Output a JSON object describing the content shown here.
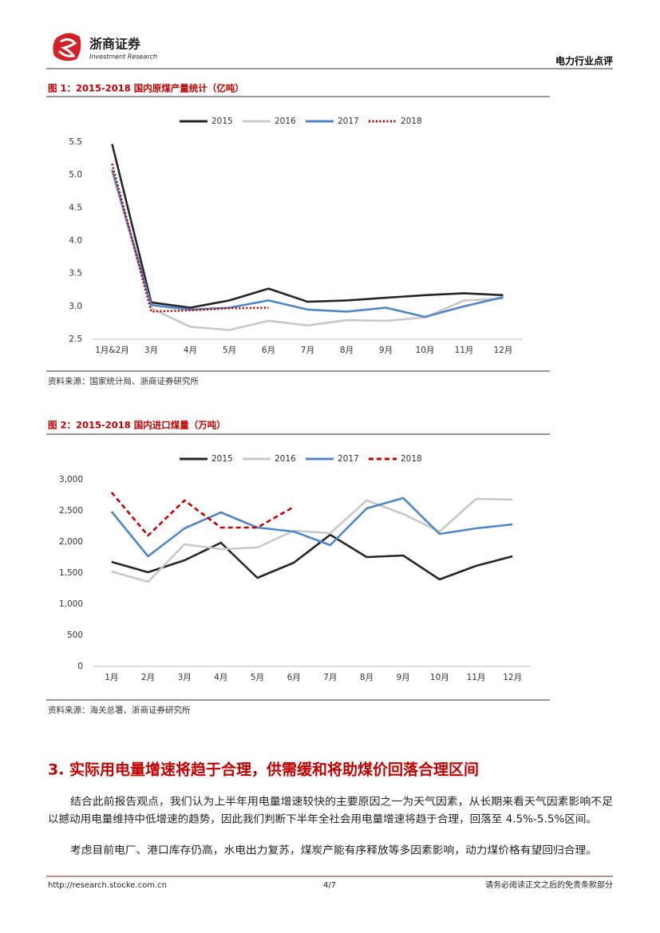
{
  "header": {
    "company": "浙商证券",
    "company_en": "Investment Research",
    "report_type": "电力行业点评"
  },
  "chart_data": [
    {
      "type": "line",
      "title": "图 1：2015-2018 国内原煤产量统计（亿吨）",
      "categories": [
        "1月&2月",
        "3月",
        "4月",
        "5月",
        "6月",
        "7月",
        "8月",
        "9月",
        "10月",
        "11月",
        "12月"
      ],
      "series": [
        {
          "name": "2015",
          "color": "#262626",
          "style": "solid",
          "values": [
            5.47,
            3.06,
            2.98,
            3.09,
            3.27,
            3.07,
            3.09,
            3.13,
            3.17,
            3.2,
            3.17
          ]
        },
        {
          "name": "2016",
          "color": "#c8c8c8",
          "style": "solid",
          "values": [
            5.05,
            2.97,
            2.69,
            2.64,
            2.78,
            2.71,
            2.79,
            2.78,
            2.83,
            3.09,
            3.12
          ]
        },
        {
          "name": "2017",
          "color": "#4f86c6",
          "style": "solid",
          "values": [
            5.08,
            3.02,
            2.95,
            2.98,
            3.09,
            2.95,
            2.92,
            2.98,
            2.84,
            3.0,
            3.14
          ]
        },
        {
          "name": "2018",
          "color": "#c00000",
          "style": "dotted",
          "values": [
            5.17,
            2.92,
            2.94,
            2.97,
            2.98,
            null,
            null,
            null,
            null,
            null,
            null
          ]
        }
      ],
      "ylim": [
        2.5,
        5.5
      ],
      "yticks": [
        2.5,
        {
          "value": 3,
          "label": "3.0"
        },
        3.5,
        {
          "value": 4,
          "label": "4.0"
        },
        4.5,
        {
          "value": 5,
          "label": "5.0"
        },
        5.5
      ],
      "grid": false,
      "legend": "top",
      "source": "资料来源：国家统计局、浙商证券研究所"
    },
    {
      "type": "line",
      "title": "图 2：2015-2018 国内进口煤量（万吨）",
      "categories": [
        "1月",
        "2月",
        "3月",
        "4月",
        "5月",
        "6月",
        "7月",
        "8月",
        "9月",
        "10月",
        "11月",
        "12月"
      ],
      "series": [
        {
          "name": "2015",
          "color": "#262626",
          "style": "solid",
          "values": [
            1679,
            1513,
            1705,
            1987,
            1423,
            1667,
            2115,
            1756,
            1782,
            1397,
            1615,
            1769
          ]
        },
        {
          "name": "2016",
          "color": "#c8c8c8",
          "style": "solid",
          "values": [
            1526,
            1359,
            1962,
            1885,
            1910,
            2179,
            2141,
            2667,
            2449,
            2167,
            2692,
            2679
          ]
        },
        {
          "name": "2017",
          "color": "#4f86c6",
          "style": "solid",
          "values": [
            2487,
            1769,
            2218,
            2474,
            2231,
            2167,
            1949,
            2538,
            2705,
            2128,
            2218,
            2282
          ]
        },
        {
          "name": "2018",
          "color": "#c00000",
          "style": "dashed",
          "values": [
            2795,
            2103,
            2667,
            2231,
            2231,
            2564,
            null,
            null,
            null,
            null,
            null,
            null
          ]
        }
      ],
      "ylim": [
        0,
        3000
      ],
      "yticks": [
        0,
        500,
        {
          "value": 1000,
          "label": "1,000"
        },
        {
          "value": 1500,
          "label": "1,500"
        },
        {
          "value": 2000,
          "label": "2,000"
        },
        {
          "value": 2500,
          "label": "2,500"
        },
        {
          "value": 3000,
          "label": "3,000"
        }
      ],
      "grid": false,
      "legend": "top",
      "source": "资料来源：海关总署、浙商证券研究所"
    }
  ],
  "section": {
    "heading": "3. 实际用电量增速将趋于合理，供需缓和将助煤价回落合理区间",
    "paragraphs": [
      [
        "结合此前报告观点，我们认为上半年用电量增速较快的主要原因之一为天气因素，从长期来看天气因素影响不足",
        "以撼动用电量维持中低增速的趋势，因此我们判断下半年全社会用电量增速将趋于合理，回落至 4.5%-5.5%区间。"
      ],
      [
        "考虑目前电厂、港口库存仍高，水电出力复苏，煤炭产能有序释放等多因素影响，动力煤价格有望回归合理。"
      ]
    ]
  },
  "footer": {
    "url": "http://research.stocke.com.cn",
    "page": "4/7",
    "disclaimer": "请务必阅读正文之后的免责条款部分"
  }
}
